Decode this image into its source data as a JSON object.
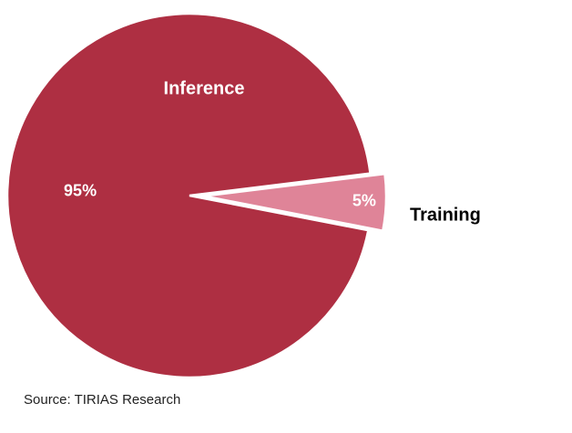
{
  "chart_data": {
    "type": "pie",
    "categories": [
      "Inference",
      "Training"
    ],
    "values": [
      95,
      5
    ],
    "value_labels": [
      "95%",
      "5%"
    ],
    "colors": [
      "#ae2f42",
      "#df8498"
    ],
    "source": "Source: TIRIAS Research"
  }
}
